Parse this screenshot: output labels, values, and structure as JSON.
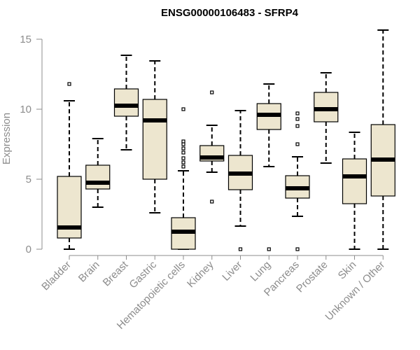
{
  "chart_data": {
    "type": "boxplot",
    "title": "ENSG00000106483 - SFRP4",
    "xlabel": "",
    "ylabel": "Expression",
    "ylim": [
      0,
      15
    ],
    "yticks": [
      0,
      5,
      10,
      15
    ],
    "colors": {
      "box_fill": "#ede6cf",
      "box_stroke": "#000000",
      "axis": "#8c8c8c"
    },
    "categories": [
      "Bladder",
      "Brain",
      "Breast",
      "Gastric",
      "Hematopoietic cells",
      "Kidney",
      "Liver",
      "Lung",
      "Pancreas",
      "Prostate",
      "Skin",
      "Unknown / Other"
    ],
    "series": [
      {
        "name": "Bladder",
        "whisker_low": 0.0,
        "q1": 0.8,
        "median": 1.55,
        "q3": 5.2,
        "whisker_high": 10.6,
        "outliers": [
          11.8
        ]
      },
      {
        "name": "Brain",
        "whisker_low": 3.0,
        "q1": 4.3,
        "median": 4.75,
        "q3": 6.0,
        "whisker_high": 7.9,
        "outliers": []
      },
      {
        "name": "Breast",
        "whisker_low": 7.1,
        "q1": 9.5,
        "median": 10.25,
        "q3": 11.45,
        "whisker_high": 13.85,
        "outliers": []
      },
      {
        "name": "Gastric",
        "whisker_low": 2.6,
        "q1": 5.0,
        "median": 9.2,
        "q3": 10.7,
        "whisker_high": 13.45,
        "outliers": []
      },
      {
        "name": "Hematopoietic cells",
        "whisker_low": 0.0,
        "q1": 0.0,
        "median": 1.25,
        "q3": 2.25,
        "whisker_high": 5.6,
        "outliers": [
          5.9,
          6.2,
          6.5,
          6.9,
          7.2,
          7.5,
          7.7,
          10.0
        ]
      },
      {
        "name": "Kidney",
        "whisker_low": 5.5,
        "q1": 6.3,
        "median": 6.55,
        "q3": 7.4,
        "whisker_high": 8.85,
        "outliers": [
          3.4,
          11.2
        ]
      },
      {
        "name": "Liver",
        "whisker_low": 1.65,
        "q1": 4.25,
        "median": 5.4,
        "q3": 6.7,
        "whisker_high": 9.9,
        "outliers": [
          0.0
        ]
      },
      {
        "name": "Lung",
        "whisker_low": 5.9,
        "q1": 8.55,
        "median": 9.6,
        "q3": 10.4,
        "whisker_high": 11.8,
        "outliers": [
          0.0
        ]
      },
      {
        "name": "Pancreas",
        "whisker_low": 2.35,
        "q1": 3.65,
        "median": 4.35,
        "q3": 5.25,
        "whisker_high": 6.6,
        "outliers": [
          0.0,
          7.5,
          8.8,
          9.3,
          9.7
        ]
      },
      {
        "name": "Prostate",
        "whisker_low": 6.15,
        "q1": 9.1,
        "median": 10.0,
        "q3": 11.2,
        "whisker_high": 12.6,
        "outliers": []
      },
      {
        "name": "Skin",
        "whisker_low": 0.0,
        "q1": 3.25,
        "median": 5.2,
        "q3": 6.45,
        "whisker_high": 8.35,
        "outliers": []
      },
      {
        "name": "Unknown / Other",
        "whisker_low": 0.0,
        "q1": 3.8,
        "median": 6.4,
        "q3": 8.9,
        "whisker_high": 15.65,
        "outliers": []
      }
    ]
  }
}
